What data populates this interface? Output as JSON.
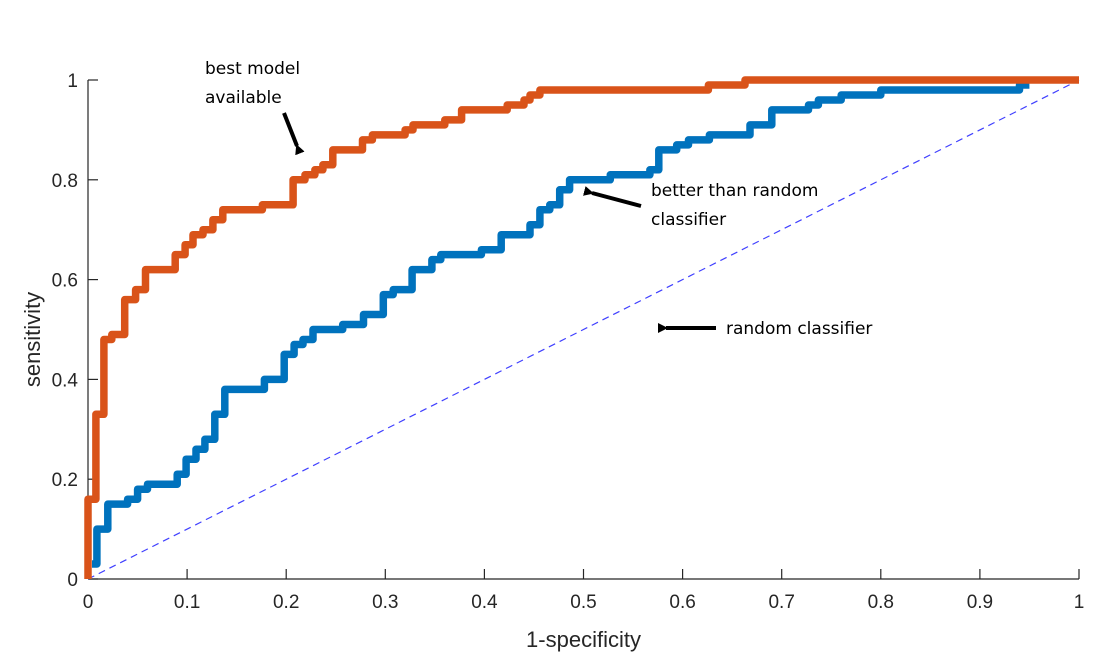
{
  "chart_data": {
    "type": "line",
    "title": "",
    "xlabel": "1-specificity",
    "ylabel": "sensitivity",
    "xlim": [
      0,
      1
    ],
    "ylim": [
      0,
      1
    ],
    "grid": false,
    "xticks": [
      "0",
      "0.1",
      "0.2",
      "0.3",
      "0.4",
      "0.5",
      "0.6",
      "0.7",
      "0.8",
      "0.9",
      "1"
    ],
    "xtick_values": [
      0,
      0.1,
      0.2,
      0.3,
      0.4,
      0.5,
      0.6,
      0.7,
      0.8,
      0.9,
      1
    ],
    "yticks": [
      "0",
      "0.2",
      "0.4",
      "0.6",
      "0.8",
      "1"
    ],
    "ytick_values": [
      0,
      0.2,
      0.4,
      0.6,
      0.8,
      1
    ],
    "series": [
      {
        "name": "best model available",
        "color": "#D95319",
        "style": "step",
        "x": [
          0,
          0,
          0.008,
          0.008,
          0.016,
          0.016,
          0.024,
          0.024,
          0.037,
          0.037,
          0.048,
          0.048,
          0.058,
          0.058,
          0.088,
          0.088,
          0.098,
          0.098,
          0.106,
          0.106,
          0.116,
          0.116,
          0.126,
          0.126,
          0.136,
          0.136,
          0.176,
          0.176,
          0.207,
          0.207,
          0.219,
          0.219,
          0.229,
          0.229,
          0.237,
          0.237,
          0.247,
          0.247,
          0.277,
          0.277,
          0.287,
          0.287,
          0.32,
          0.32,
          0.328,
          0.328,
          0.36,
          0.36,
          0.377,
          0.377,
          0.423,
          0.423,
          0.44,
          0.44,
          0.446,
          0.446,
          0.456,
          0.456,
          0.626,
          0.626,
          0.663,
          0.663,
          1
        ],
        "y": [
          0,
          0.16,
          0.16,
          0.33,
          0.33,
          0.48,
          0.48,
          0.49,
          0.49,
          0.56,
          0.56,
          0.58,
          0.58,
          0.62,
          0.62,
          0.65,
          0.65,
          0.67,
          0.67,
          0.69,
          0.69,
          0.7,
          0.7,
          0.72,
          0.72,
          0.74,
          0.74,
          0.75,
          0.75,
          0.8,
          0.8,
          0.81,
          0.81,
          0.82,
          0.82,
          0.83,
          0.83,
          0.86,
          0.86,
          0.88,
          0.88,
          0.89,
          0.89,
          0.9,
          0.9,
          0.91,
          0.91,
          0.92,
          0.92,
          0.94,
          0.94,
          0.95,
          0.95,
          0.96,
          0.96,
          0.97,
          0.97,
          0.98,
          0.98,
          0.99,
          0.99,
          1.0,
          1.0
        ]
      },
      {
        "name": "better than random classifier",
        "color": "#0072BD",
        "style": "step",
        "x": [
          0.004,
          0.004,
          0.009,
          0.009,
          0.02,
          0.02,
          0.04,
          0.04,
          0.05,
          0.05,
          0.06,
          0.06,
          0.09,
          0.09,
          0.099,
          0.099,
          0.109,
          0.109,
          0.118,
          0.118,
          0.128,
          0.128,
          0.138,
          0.138,
          0.178,
          0.178,
          0.198,
          0.198,
          0.208,
          0.208,
          0.217,
          0.217,
          0.227,
          0.227,
          0.257,
          0.257,
          0.278,
          0.278,
          0.298,
          0.298,
          0.308,
          0.308,
          0.327,
          0.327,
          0.347,
          0.347,
          0.356,
          0.356,
          0.397,
          0.397,
          0.417,
          0.417,
          0.446,
          0.446,
          0.456,
          0.456,
          0.466,
          0.466,
          0.476,
          0.476,
          0.486,
          0.486,
          0.527,
          0.527,
          0.567,
          0.567,
          0.576,
          0.576,
          0.594,
          0.594,
          0.606,
          0.606,
          0.627,
          0.627,
          0.668,
          0.668,
          0.69,
          0.69,
          0.727,
          0.727,
          0.737,
          0.737,
          0.76,
          0.76,
          0.8,
          0.8,
          0.94,
          0.94,
          0.95
        ],
        "y": [
          0.03,
          0.03,
          0.03,
          0.1,
          0.1,
          0.15,
          0.15,
          0.16,
          0.16,
          0.18,
          0.18,
          0.19,
          0.19,
          0.21,
          0.21,
          0.24,
          0.24,
          0.26,
          0.26,
          0.28,
          0.28,
          0.33,
          0.33,
          0.38,
          0.38,
          0.4,
          0.4,
          0.45,
          0.45,
          0.47,
          0.47,
          0.48,
          0.48,
          0.5,
          0.5,
          0.51,
          0.51,
          0.53,
          0.53,
          0.57,
          0.57,
          0.58,
          0.58,
          0.62,
          0.62,
          0.64,
          0.64,
          0.65,
          0.65,
          0.66,
          0.66,
          0.69,
          0.69,
          0.71,
          0.71,
          0.74,
          0.74,
          0.75,
          0.75,
          0.78,
          0.78,
          0.8,
          0.8,
          0.81,
          0.81,
          0.82,
          0.82,
          0.86,
          0.86,
          0.87,
          0.87,
          0.88,
          0.88,
          0.89,
          0.89,
          0.91,
          0.91,
          0.94,
          0.94,
          0.95,
          0.95,
          0.96,
          0.96,
          0.97,
          0.97,
          0.98,
          0.98,
          0.99,
          0.99
        ]
      },
      {
        "name": "random classifier",
        "color": "#4040FF",
        "style": "dashed",
        "x": [
          0,
          1
        ],
        "y": [
          0,
          1
        ]
      }
    ],
    "annotations": [
      {
        "text_lines": [
          "best model",
          "available"
        ],
        "points_to": [
          0.213,
          0.85
        ]
      },
      {
        "text_lines": [
          "better than random",
          "classifier"
        ],
        "points_to": [
          0.497,
          0.79
        ]
      },
      {
        "text_lines": [
          "random classifier"
        ],
        "points_to": [
          0.57,
          0.505
        ]
      }
    ]
  }
}
